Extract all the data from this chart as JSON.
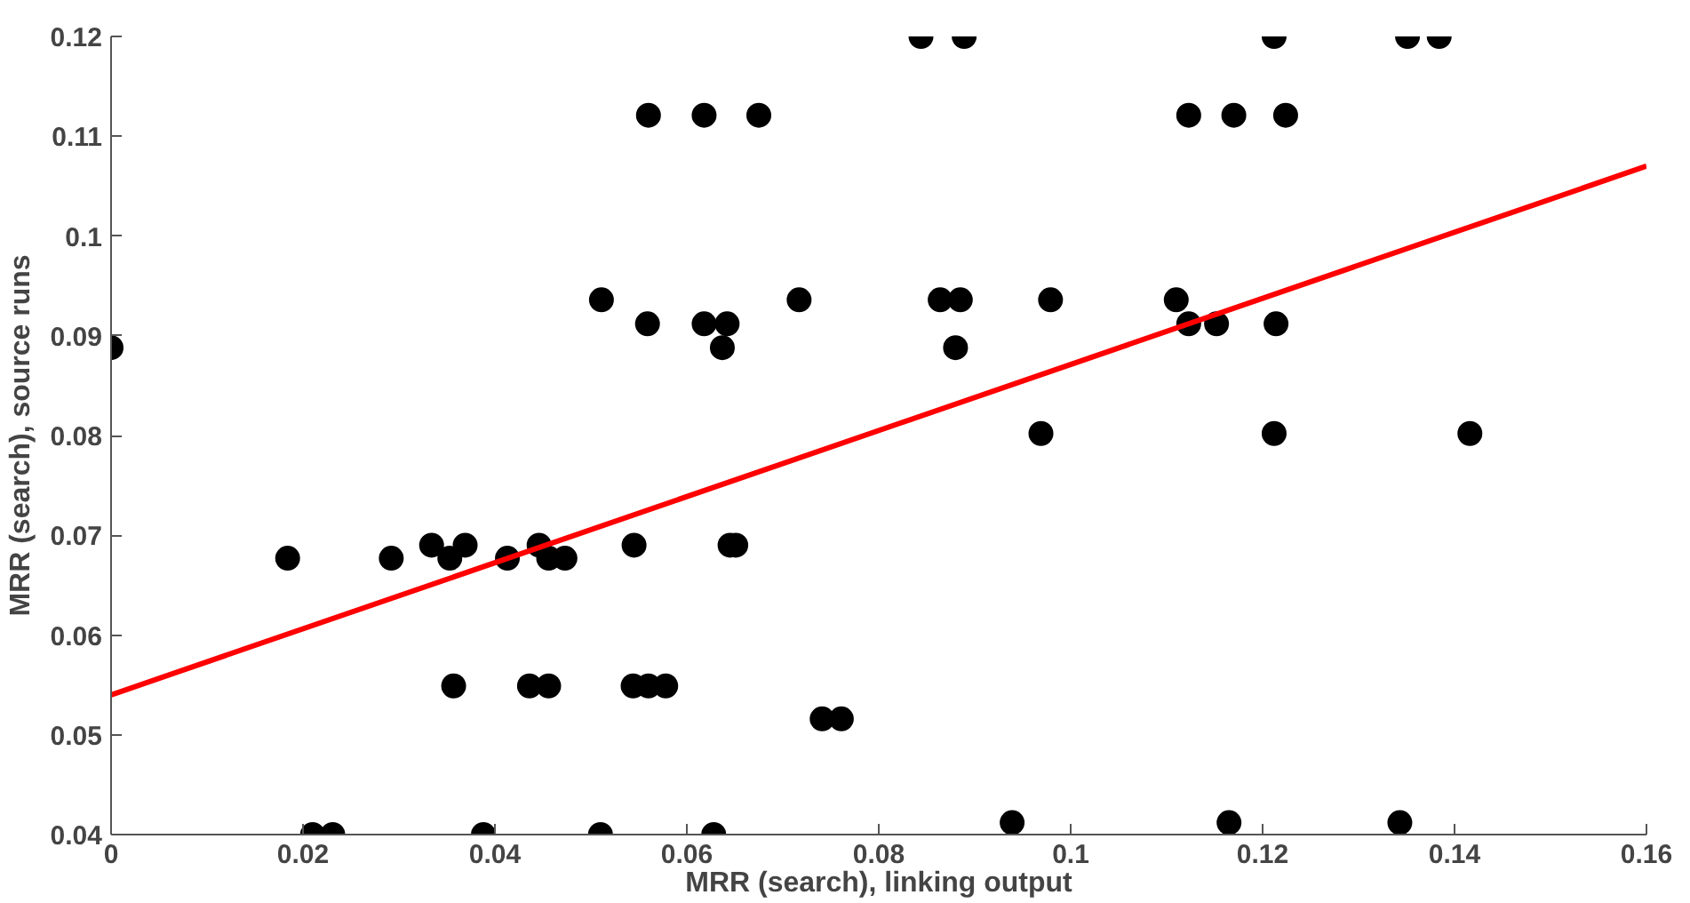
{
  "chart_data": {
    "type": "scatter",
    "xlabel": "MRR (search), linking output",
    "ylabel": "MRR (search), source runs",
    "xlim": [
      0,
      0.16
    ],
    "ylim": [
      0.04,
      0.12
    ],
    "xticks": [
      0,
      0.02,
      0.04,
      0.06,
      0.08,
      0.1,
      0.12,
      0.14,
      0.16
    ],
    "yticks": [
      0.04,
      0.05,
      0.06,
      0.07,
      0.08,
      0.09,
      0.1,
      0.11,
      0.12
    ],
    "grid": false,
    "series": [
      {
        "marker": "circle",
        "color": "#000000",
        "x": [
          0,
          0.056,
          0.0511,
          0.0559,
          0.0184,
          0.0292,
          0.0353,
          0.0413,
          0.0456,
          0.0473,
          0.0334,
          0.0369,
          0.0446,
          0.0545,
          0.0357,
          0.0436,
          0.0456,
          0.0544,
          0.056,
          0.0578,
          0.021,
          0.0231,
          0.0388,
          0.051,
          0.0844,
          0.0889,
          0.0618,
          0.0675,
          0.1123,
          0.0717,
          0.0864,
          0.0885,
          0.0979,
          0.111,
          0.0618,
          0.0642,
          0.1123,
          0.0637,
          0.088,
          0.0969,
          0.0645,
          0.0651,
          0.0741,
          0.0761,
          0.0628,
          0.0939,
          0.1212,
          0.1351,
          0.1384,
          0.117,
          0.1224,
          0.1152,
          0.1214,
          0.1212,
          0.1416,
          0.1165,
          0.1343
        ],
        "values": [
          0.0888,
          0.1121,
          0.0936,
          0.0912,
          0.0677,
          0.0677,
          0.0677,
          0.0677,
          0.0677,
          0.0677,
          0.069,
          0.069,
          0.069,
          0.069,
          0.0549,
          0.0549,
          0.0549,
          0.0549,
          0.0549,
          0.0549,
          0.04,
          0.04,
          0.04,
          0.04,
          0.12,
          0.12,
          0.1121,
          0.1121,
          0.1121,
          0.0936,
          0.0936,
          0.0936,
          0.0936,
          0.0936,
          0.0912,
          0.0912,
          0.0912,
          0.0888,
          0.0888,
          0.0802,
          0.069,
          0.069,
          0.0516,
          0.0516,
          0.04,
          0.0412,
          0.12,
          0.12,
          0.12,
          0.1121,
          0.1121,
          0.0912,
          0.0912,
          0.0802,
          0.0802,
          0.0412,
          0.0412
        ]
      },
      {
        "type": "line",
        "color": "#ff0000",
        "x": [
          0,
          0.16
        ],
        "values": [
          0.054,
          0.107
        ]
      }
    ]
  }
}
